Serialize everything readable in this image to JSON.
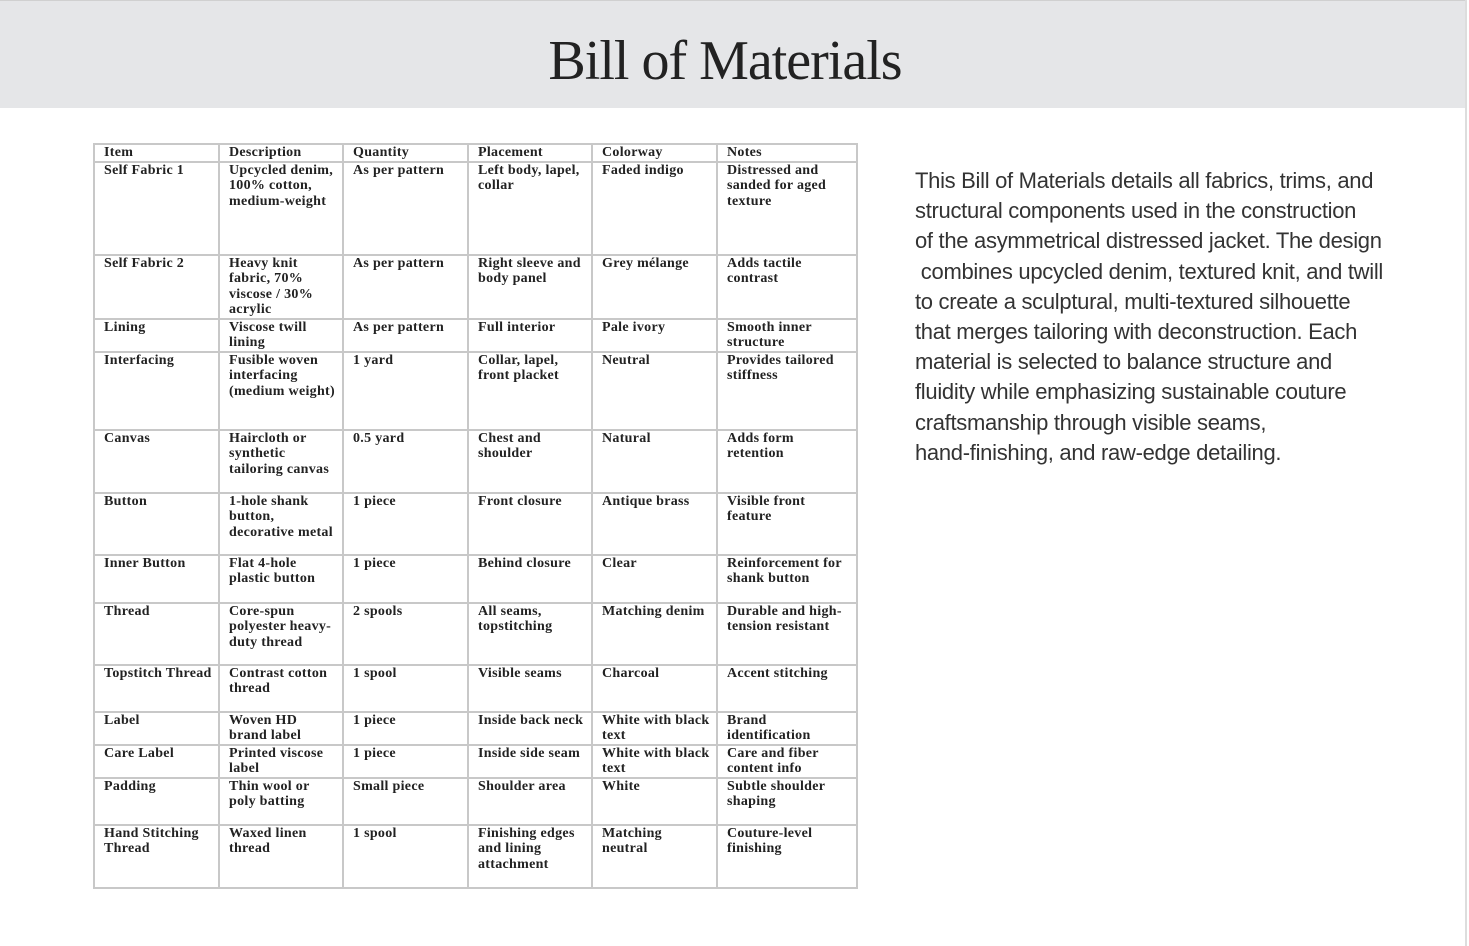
{
  "header": {
    "title": "Bill of Materials"
  },
  "table": {
    "columns": [
      "Item",
      "Description",
      "Quantity",
      "Placement",
      "Colorway",
      "Notes"
    ],
    "rows": [
      [
        "Self Fabric 1",
        "Upcycled denim, 100% cotton, medium-weight",
        "As per pattern",
        "Left body, lapel, collar",
        "Faded indigo",
        "Distressed and sanded for aged texture"
      ],
      [
        "Self Fabric 2",
        "Heavy knit fabric, 70% viscose / 30% acrylic",
        "As per pattern",
        "Right sleeve and body panel",
        "Grey mélange",
        "Adds tactile contrast"
      ],
      [
        "Lining",
        "Viscose twill lining",
        "As per pattern",
        "Full interior",
        "Pale ivory",
        "Smooth inner structure"
      ],
      [
        "Interfacing",
        "Fusible woven interfacing (medium weight)",
        "1 yard",
        "Collar, lapel, front placket",
        "Neutral",
        "Provides tailored stiffness"
      ],
      [
        "Canvas",
        "Haircloth or synthetic tailoring canvas",
        "0.5 yard",
        "Chest and shoulder",
        "Natural",
        "Adds form retention"
      ],
      [
        "Button",
        "1-hole shank button, decorative metal",
        "1 piece",
        "Front closure",
        "Antique brass",
        "Visible front feature"
      ],
      [
        "Inner Button",
        "Flat 4-hole plastic button",
        "1 piece",
        "Behind closure",
        "Clear",
        "Reinforcement for shank button"
      ],
      [
        "Thread",
        "Core-spun polyester heavy-duty thread",
        "2 spools",
        "All seams, topstitching",
        "Matching denim",
        "Durable and high-tension resistant"
      ],
      [
        "Topstitch Thread",
        "Contrast cotton thread",
        "1 spool",
        "Visible seams",
        "Charcoal",
        "Accent stitching"
      ],
      [
        "Label",
        "Woven HD brand label",
        "1 piece",
        "Inside back neck",
        "White with black text",
        "Brand identification"
      ],
      [
        "Care Label",
        "Printed viscose label",
        "1 piece",
        "Inside side seam",
        "White with black text",
        "Care and fiber content info"
      ],
      [
        "Padding",
        "Thin wool or poly batting",
        "Small piece",
        "Shoulder area",
        "White",
        "Subtle shoulder shaping"
      ],
      [
        "Hand Stitching Thread",
        "Waxed linen thread",
        "1 spool",
        "Finishing edges and lining attachment",
        "Matching neutral",
        "Couture-level finishing"
      ]
    ]
  },
  "description": {
    "lines": [
      "This Bill of Materials details all fabrics, trims, and",
      "structural components used in the construction",
      "of the asymmetrical distressed jacket. The design",
      " combines upcycled denim, textured knit, and twill",
      "to create a sculptural, multi-textured silhouette",
      "that merges tailoring with deconstruction. Each",
      "material is selected to balance structure and",
      "fluidity while emphasizing sustainable couture",
      "craftsmanship through visible seams,",
      "hand-finishing, and raw-edge detailing."
    ]
  }
}
